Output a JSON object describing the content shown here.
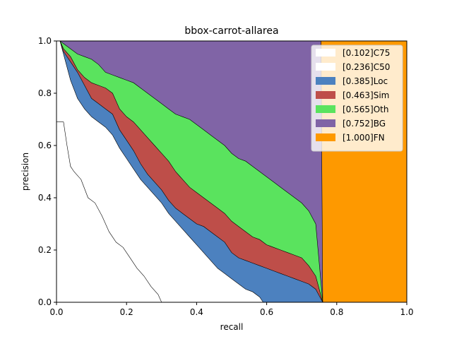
{
  "chart_data": {
    "type": "area",
    "title": "bbox-carrot-allarea",
    "xlabel": "recall",
    "ylabel": "precision",
    "xlim": [
      0,
      1
    ],
    "ylim": [
      0,
      1
    ],
    "xticks": [
      "0.0",
      "0.2",
      "0.4",
      "0.6",
      "0.8",
      "1.0"
    ],
    "yticks": [
      "0.0",
      "0.2",
      "0.4",
      "0.6",
      "0.8",
      "1.0"
    ],
    "grid": false,
    "legend_position": "top-right",
    "series": [
      {
        "name": "[0.102]C75",
        "color": "#ffffff",
        "points": [
          [
            0.0,
            0.69
          ],
          [
            0.02,
            0.69
          ],
          [
            0.03,
            0.6
          ],
          [
            0.04,
            0.52
          ],
          [
            0.05,
            0.5
          ],
          [
            0.07,
            0.47
          ],
          [
            0.09,
            0.4
          ],
          [
            0.11,
            0.38
          ],
          [
            0.13,
            0.33
          ],
          [
            0.15,
            0.27
          ],
          [
            0.17,
            0.23
          ],
          [
            0.19,
            0.21
          ],
          [
            0.21,
            0.17
          ],
          [
            0.23,
            0.13
          ],
          [
            0.25,
            0.1
          ],
          [
            0.27,
            0.06
          ],
          [
            0.29,
            0.03
          ],
          [
            0.3,
            0.0
          ]
        ]
      },
      {
        "name": "[0.236]C50",
        "color": "#ffffff",
        "points": [
          [
            0.0,
            1.0
          ],
          [
            0.01,
            1.0
          ],
          [
            0.02,
            0.95
          ],
          [
            0.03,
            0.9
          ],
          [
            0.04,
            0.85
          ],
          [
            0.06,
            0.78
          ],
          [
            0.08,
            0.74
          ],
          [
            0.1,
            0.71
          ],
          [
            0.12,
            0.69
          ],
          [
            0.14,
            0.67
          ],
          [
            0.16,
            0.64
          ],
          [
            0.18,
            0.59
          ],
          [
            0.2,
            0.55
          ],
          [
            0.22,
            0.51
          ],
          [
            0.24,
            0.47
          ],
          [
            0.26,
            0.44
          ],
          [
            0.28,
            0.41
          ],
          [
            0.3,
            0.38
          ],
          [
            0.32,
            0.34
          ],
          [
            0.34,
            0.31
          ],
          [
            0.36,
            0.28
          ],
          [
            0.38,
            0.25
          ],
          [
            0.4,
            0.22
          ],
          [
            0.42,
            0.19
          ],
          [
            0.44,
            0.16
          ],
          [
            0.46,
            0.13
          ],
          [
            0.48,
            0.11
          ],
          [
            0.5,
            0.09
          ],
          [
            0.52,
            0.07
          ],
          [
            0.54,
            0.05
          ],
          [
            0.56,
            0.04
          ],
          [
            0.58,
            0.02
          ],
          [
            0.59,
            0.0
          ]
        ]
      },
      {
        "name": "[0.385]Loc",
        "color": "#4c81bf",
        "points": [
          [
            0.0,
            1.0
          ],
          [
            0.01,
            1.0
          ],
          [
            0.02,
            0.96
          ],
          [
            0.04,
            0.92
          ],
          [
            0.06,
            0.88
          ],
          [
            0.08,
            0.83
          ],
          [
            0.1,
            0.78
          ],
          [
            0.12,
            0.76
          ],
          [
            0.14,
            0.74
          ],
          [
            0.16,
            0.72
          ],
          [
            0.18,
            0.66
          ],
          [
            0.2,
            0.62
          ],
          [
            0.22,
            0.58
          ],
          [
            0.24,
            0.53
          ],
          [
            0.26,
            0.49
          ],
          [
            0.28,
            0.46
          ],
          [
            0.3,
            0.43
          ],
          [
            0.32,
            0.39
          ],
          [
            0.34,
            0.36
          ],
          [
            0.36,
            0.34
          ],
          [
            0.38,
            0.32
          ],
          [
            0.4,
            0.3
          ],
          [
            0.42,
            0.29
          ],
          [
            0.44,
            0.27
          ],
          [
            0.46,
            0.25
          ],
          [
            0.48,
            0.23
          ],
          [
            0.5,
            0.19
          ],
          [
            0.52,
            0.17
          ],
          [
            0.54,
            0.16
          ],
          [
            0.56,
            0.15
          ],
          [
            0.58,
            0.14
          ],
          [
            0.6,
            0.13
          ],
          [
            0.62,
            0.12
          ],
          [
            0.64,
            0.11
          ],
          [
            0.66,
            0.1
          ],
          [
            0.68,
            0.09
          ],
          [
            0.7,
            0.08
          ],
          [
            0.72,
            0.07
          ],
          [
            0.74,
            0.05
          ],
          [
            0.76,
            0.0
          ]
        ]
      },
      {
        "name": "[0.463]Sim",
        "color": "#be4e49",
        "points": [
          [
            0.0,
            1.0
          ],
          [
            0.01,
            1.0
          ],
          [
            0.02,
            0.97
          ],
          [
            0.04,
            0.94
          ],
          [
            0.06,
            0.89
          ],
          [
            0.08,
            0.86
          ],
          [
            0.1,
            0.84
          ],
          [
            0.12,
            0.83
          ],
          [
            0.14,
            0.82
          ],
          [
            0.16,
            0.8
          ],
          [
            0.18,
            0.74
          ],
          [
            0.2,
            0.71
          ],
          [
            0.22,
            0.69
          ],
          [
            0.24,
            0.66
          ],
          [
            0.26,
            0.63
          ],
          [
            0.28,
            0.6
          ],
          [
            0.3,
            0.57
          ],
          [
            0.32,
            0.54
          ],
          [
            0.34,
            0.5
          ],
          [
            0.36,
            0.47
          ],
          [
            0.38,
            0.44
          ],
          [
            0.4,
            0.42
          ],
          [
            0.42,
            0.4
          ],
          [
            0.44,
            0.38
          ],
          [
            0.46,
            0.36
          ],
          [
            0.48,
            0.34
          ],
          [
            0.5,
            0.31
          ],
          [
            0.52,
            0.29
          ],
          [
            0.54,
            0.27
          ],
          [
            0.56,
            0.25
          ],
          [
            0.58,
            0.24
          ],
          [
            0.6,
            0.22
          ],
          [
            0.62,
            0.21
          ],
          [
            0.64,
            0.2
          ],
          [
            0.66,
            0.19
          ],
          [
            0.68,
            0.18
          ],
          [
            0.7,
            0.17
          ],
          [
            0.72,
            0.14
          ],
          [
            0.74,
            0.1
          ],
          [
            0.76,
            0.0
          ]
        ]
      },
      {
        "name": "[0.565]Oth",
        "color": "#5ae35e",
        "points": [
          [
            0.0,
            1.0
          ],
          [
            0.01,
            1.0
          ],
          [
            0.02,
            0.99
          ],
          [
            0.04,
            0.97
          ],
          [
            0.06,
            0.95
          ],
          [
            0.08,
            0.94
          ],
          [
            0.1,
            0.93
          ],
          [
            0.12,
            0.91
          ],
          [
            0.14,
            0.88
          ],
          [
            0.16,
            0.87
          ],
          [
            0.18,
            0.86
          ],
          [
            0.2,
            0.85
          ],
          [
            0.22,
            0.84
          ],
          [
            0.24,
            0.82
          ],
          [
            0.26,
            0.8
          ],
          [
            0.28,
            0.78
          ],
          [
            0.3,
            0.76
          ],
          [
            0.32,
            0.74
          ],
          [
            0.34,
            0.72
          ],
          [
            0.36,
            0.71
          ],
          [
            0.38,
            0.7
          ],
          [
            0.4,
            0.68
          ],
          [
            0.42,
            0.66
          ],
          [
            0.44,
            0.64
          ],
          [
            0.46,
            0.62
          ],
          [
            0.48,
            0.6
          ],
          [
            0.5,
            0.57
          ],
          [
            0.52,
            0.55
          ],
          [
            0.54,
            0.54
          ],
          [
            0.56,
            0.52
          ],
          [
            0.58,
            0.5
          ],
          [
            0.6,
            0.48
          ],
          [
            0.62,
            0.46
          ],
          [
            0.64,
            0.44
          ],
          [
            0.66,
            0.42
          ],
          [
            0.68,
            0.4
          ],
          [
            0.7,
            0.38
          ],
          [
            0.72,
            0.35
          ],
          [
            0.74,
            0.3
          ],
          [
            0.76,
            0.0
          ]
        ]
      },
      {
        "name": "[0.752]BG",
        "color": "#8064a6",
        "points": [
          [
            0.0,
            1.0
          ],
          [
            0.755,
            1.0
          ],
          [
            0.76,
            0.0
          ]
        ]
      },
      {
        "name": "[1.000]FN",
        "color": "#fe9900",
        "points": [
          [
            0.0,
            1.0
          ],
          [
            1.0,
            1.0
          ],
          [
            1.0,
            0.0
          ]
        ]
      }
    ]
  }
}
